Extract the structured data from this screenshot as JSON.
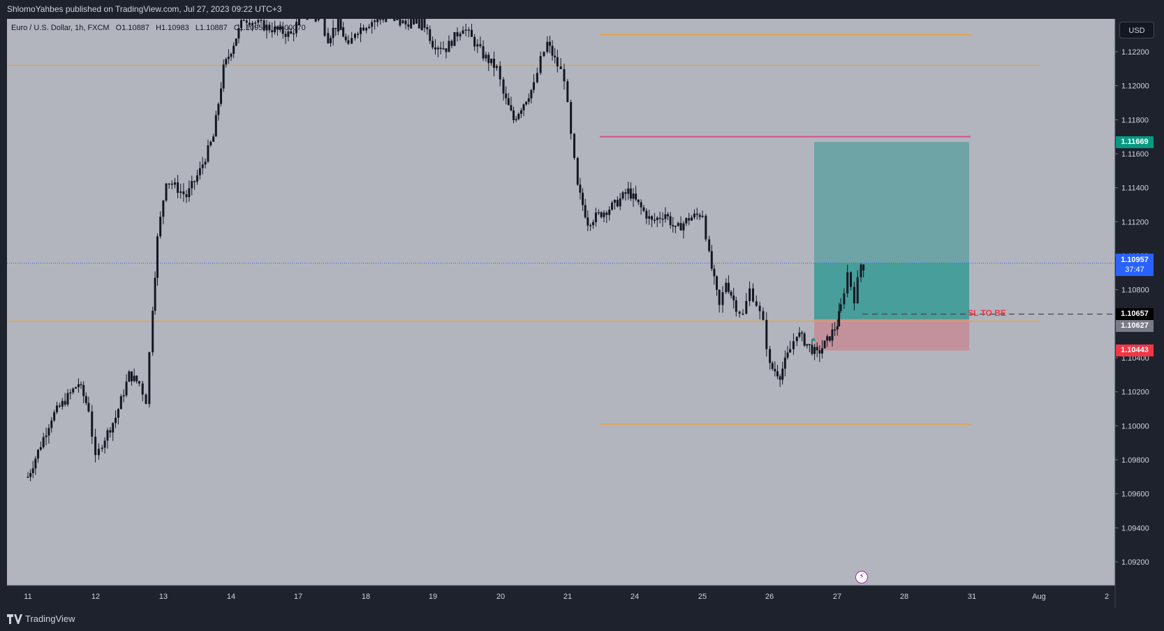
{
  "header": {
    "published": "ShlomoYahbes published on TradingView.com, Jul 27, 2023 09:22 UTC+3"
  },
  "legend": {
    "symbol": "Euro / U.S. Dollar, 1h, FXCM",
    "open": "O1.10887",
    "high": "H1.10983",
    "low": "L1.10887",
    "close": "C1.10957",
    "change": "+0.00070"
  },
  "currency_button": "USD",
  "footer": {
    "brand": "TradingView"
  },
  "colors": {
    "plot_bg": "#b2b5be",
    "candle": "#131722",
    "orange_level": "#f0a030",
    "pink_level": "#d7508a",
    "target_zone": "rgba(0,137,123,0.45)",
    "stop_zone": "rgba(242,54,69,0.25)"
  },
  "badges": {
    "target": "1.11669",
    "last_price": "1.10957",
    "countdown": "37:47",
    "sl_be": "1.10657",
    "entry": "1.10627",
    "stop": "1.10443"
  },
  "annotation": {
    "sl_to_be": "SL TO BE"
  },
  "chart_data": {
    "type": "candlestick",
    "symbol": "EURUSD",
    "timeframe": "1h",
    "ylim": [
      1.09,
      1.1235
    ],
    "y_ticks": [
      "1.12200",
      "1.12000",
      "1.11800",
      "1.11600",
      "1.11400",
      "1.11200",
      "1.11000",
      "1.10800",
      "1.10600",
      "1.10400",
      "1.10200",
      "1.10000",
      "1.09800",
      "1.09600",
      "1.09400",
      "1.09200"
    ],
    "x_ticks": [
      "11",
      "12",
      "13",
      "14",
      "17",
      "18",
      "19",
      "20",
      "21",
      "24",
      "25",
      "26",
      "27",
      "28",
      "31",
      "Aug",
      "2"
    ],
    "horizontal_levels": [
      {
        "value": 1.123,
        "color": "orange",
        "span": "24-31"
      },
      {
        "value": 1.1212,
        "color": "orange",
        "span": "11-Aug"
      },
      {
        "value": 1.117,
        "color": "pink",
        "span": "24-31"
      },
      {
        "value": 1.10615,
        "color": "orange",
        "span": "11-Aug"
      },
      {
        "value": 1.1001,
        "color": "orange",
        "span": "24-31"
      }
    ],
    "position": {
      "type": "long",
      "entry": 1.10627,
      "target": 1.11669,
      "stop": 1.10443,
      "start": "26",
      "end": "31"
    },
    "last_price": 1.10957,
    "sl_be": 1.10657,
    "price_path": [
      [
        11.0,
        1.097
      ],
      [
        11.15,
        1.0985
      ],
      [
        11.35,
        1.1005
      ],
      [
        11.55,
        1.1015
      ],
      [
        11.75,
        1.1025
      ],
      [
        11.9,
        1.101
      ],
      [
        12.0,
        1.098
      ],
      [
        12.1,
        1.099
      ],
      [
        12.3,
        1.1005
      ],
      [
        12.5,
        1.103
      ],
      [
        12.65,
        1.1025
      ],
      [
        12.75,
        1.1015
      ],
      [
        12.85,
        1.107
      ],
      [
        12.92,
        1.111
      ],
      [
        13.05,
        1.1145
      ],
      [
        13.35,
        1.1135
      ],
      [
        13.55,
        1.115
      ],
      [
        13.75,
        1.117
      ],
      [
        13.9,
        1.121
      ],
      [
        14.05,
        1.1225
      ],
      [
        14.2,
        1.124
      ],
      [
        14.5,
        1.1235
      ],
      [
        14.9,
        1.123
      ],
      [
        15.1,
        1.1245
      ],
      [
        15.35,
        1.124
      ],
      [
        15.45,
        1.1228
      ],
      [
        15.6,
        1.1238
      ],
      [
        15.75,
        1.1222
      ],
      [
        15.85,
        1.1232
      ],
      [
        16.1,
        1.1238
      ],
      [
        16.35,
        1.1242
      ],
      [
        16.6,
        1.1236
      ],
      [
        16.8,
        1.1244
      ],
      [
        17.0,
        1.1225
      ],
      [
        17.2,
        1.1222
      ],
      [
        17.45,
        1.1235
      ],
      [
        17.75,
        1.1218
      ],
      [
        17.95,
        1.121
      ],
      [
        18.05,
        1.1195
      ],
      [
        18.2,
        1.118
      ],
      [
        18.35,
        1.119
      ],
      [
        18.5,
        1.12
      ],
      [
        18.6,
        1.1215
      ],
      [
        18.7,
        1.1225
      ],
      [
        18.85,
        1.1212
      ],
      [
        18.95,
        1.1205
      ],
      [
        19.05,
        1.117
      ],
      [
        19.15,
        1.114
      ],
      [
        19.3,
        1.112
      ],
      [
        19.5,
        1.1125
      ],
      [
        19.7,
        1.113
      ],
      [
        19.9,
        1.1138
      ],
      [
        20.05,
        1.113
      ],
      [
        20.25,
        1.112
      ],
      [
        20.45,
        1.1125
      ],
      [
        20.6,
        1.1115
      ],
      [
        20.8,
        1.1122
      ],
      [
        21.0,
        1.1125
      ],
      [
        21.1,
        1.11
      ],
      [
        21.25,
        1.107
      ],
      [
        21.35,
        1.1085
      ],
      [
        21.5,
        1.107
      ],
      [
        21.6,
        1.1065
      ],
      [
        21.7,
        1.108
      ],
      [
        21.8,
        1.1072
      ],
      [
        21.9,
        1.106
      ],
      [
        22.0,
        1.1035
      ],
      [
        22.15,
        1.103
      ],
      [
        22.3,
        1.1045
      ],
      [
        22.4,
        1.1055
      ],
      [
        22.55,
        1.1048
      ],
      [
        22.7,
        1.1042
      ],
      [
        22.85,
        1.105
      ],
      [
        23.0,
        1.106
      ],
      [
        23.05,
        1.107
      ],
      [
        23.15,
        1.109
      ],
      [
        23.25,
        1.1075
      ],
      [
        23.35,
        1.1095
      ],
      [
        23.5,
        1.109
      ],
      [
        23.6,
        1.111
      ],
      [
        23.7,
        1.1098
      ],
      [
        23.8,
        1.1103
      ],
      [
        23.9,
        1.1095
      ]
    ]
  }
}
